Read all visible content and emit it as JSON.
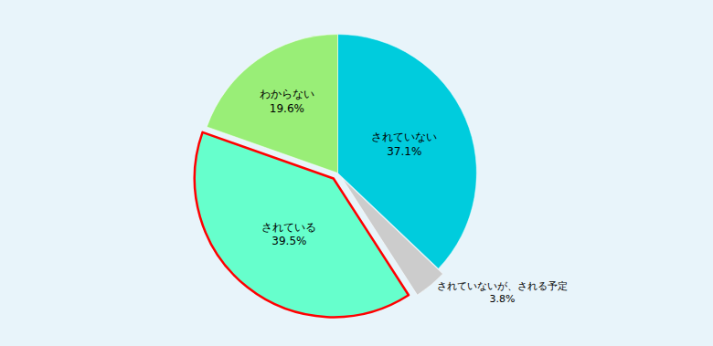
{
  "chart_data": {
    "type": "pie",
    "categories": [
      "されていない",
      "されていないが、される予定",
      "されている",
      "わからない"
    ],
    "values": [
      37.1,
      3.8,
      39.5,
      19.6
    ],
    "value_labels": [
      "37.1%",
      "3.8%",
      "39.5%",
      "19.6%"
    ],
    "colors": [
      "#00CCDD",
      "#CCCCCC",
      "#66FFCC",
      "#99EE77"
    ],
    "data_labels": true
  }
}
